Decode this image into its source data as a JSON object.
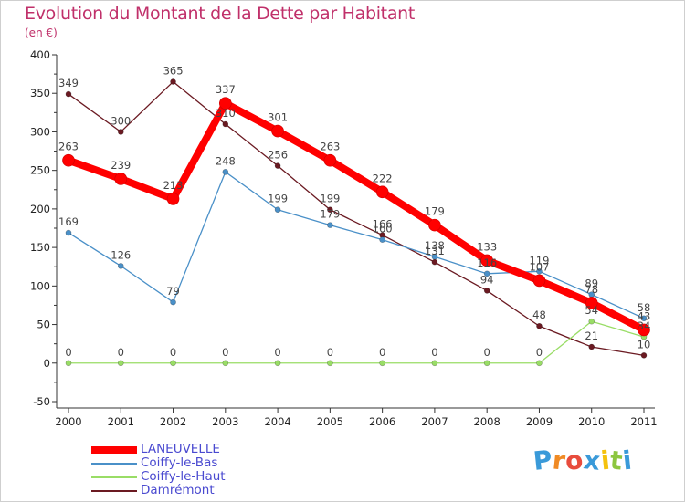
{
  "chart_data": {
    "type": "line",
    "title": "Evolution du Montant de la Dette par Habitant",
    "subtitle": "(en €)",
    "categories": [
      "2000",
      "2001",
      "2002",
      "2003",
      "2004",
      "2005",
      "2006",
      "2007",
      "2008",
      "2009",
      "2010",
      "2011"
    ],
    "ylim": [
      -50,
      400
    ],
    "yticks": [
      "-50",
      "0",
      "50",
      "100",
      "150",
      "200",
      "250",
      "300",
      "350",
      "400"
    ],
    "grid": false,
    "legend_position": "bottom-left",
    "series": [
      {
        "name": "LANEUVELLE",
        "color": "#ff0000",
        "values": [
          263,
          239,
          213,
          337,
          301,
          263,
          222,
          179,
          133,
          107,
          78,
          43
        ],
        "labels": [
          "263",
          "239",
          "213",
          "337",
          "301",
          "263",
          "222",
          "179",
          "133",
          "107",
          "78",
          "43"
        ]
      },
      {
        "name": "Coiffy-le-Bas",
        "color": "#4a90c8",
        "values": [
          169,
          126,
          79,
          248,
          199,
          179,
          160,
          138,
          116,
          119,
          89,
          58
        ],
        "labels": [
          "169",
          "126",
          "79",
          "248",
          "199",
          "179",
          "160",
          "138",
          "116",
          "119",
          "89",
          "58"
        ]
      },
      {
        "name": "Coiffy-le-Haut",
        "color": "#99dd66",
        "values": [
          0,
          0,
          0,
          0,
          0,
          0,
          0,
          0,
          0,
          0,
          54,
          34
        ],
        "labels": [
          "0",
          "0",
          "0",
          "0",
          "0",
          "0",
          "0",
          "0",
          "0",
          "0",
          "54",
          "34"
        ]
      },
      {
        "name": "Damrémont",
        "color": "#6b1a22",
        "values": [
          349,
          300,
          365,
          310,
          256,
          199,
          166,
          131,
          94,
          48,
          21,
          10
        ],
        "labels": [
          "349",
          "300",
          "365",
          "310",
          "256",
          "199",
          "166",
          "131",
          "94",
          "48",
          "21",
          "10"
        ]
      }
    ]
  },
  "logo": {
    "letters": [
      "P",
      "r",
      "o",
      "x",
      "i",
      "t",
      "i"
    ],
    "colors": [
      "#3a9ad9",
      "#f08a24",
      "#e84c3d",
      "#3a9ad9",
      "#f4c20d",
      "#8cc63f",
      "#3a9ad9"
    ]
  }
}
